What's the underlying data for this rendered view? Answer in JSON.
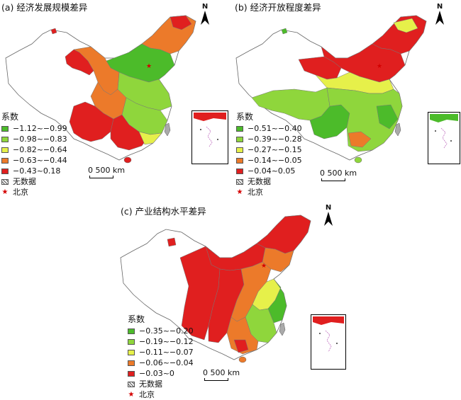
{
  "panels": [
    {
      "title": "(a) 经济发展规模差异",
      "legend_title": "系数",
      "classes": [
        {
          "label": "−1.12~−0.99",
          "color": "#4cbb2a"
        },
        {
          "label": "−0.98~−0.83",
          "color": "#8fd63c"
        },
        {
          "label": "−0.82~−0.64",
          "color": "#e6f04a"
        },
        {
          "label": "−0.63~−0.44",
          "color": "#ec7a2a"
        },
        {
          "label": "−0.43~0.18",
          "color": "#e01f1f"
        }
      ],
      "no_data_label": "无数据",
      "capital_label": "北京",
      "scale_label": "0 500 km",
      "north_label": "N"
    },
    {
      "title": "(b) 经济开放程度差异",
      "legend_title": "系数",
      "classes": [
        {
          "label": "−0.51~−0.40",
          "color": "#4cbb2a"
        },
        {
          "label": "−0.39~−0.28",
          "color": "#8fd63c"
        },
        {
          "label": "−0.27~−0.15",
          "color": "#e6f04a"
        },
        {
          "label": "−0.14~−0.05",
          "color": "#ec7a2a"
        },
        {
          "label": "−0.04~0.05",
          "color": "#e01f1f"
        }
      ],
      "no_data_label": "无数据",
      "capital_label": "北京",
      "scale_label": "0 500 km",
      "north_label": "N"
    },
    {
      "title": "(c) 产业结构水平差异",
      "legend_title": "系数",
      "classes": [
        {
          "label": "−0.35~−0.20",
          "color": "#4cbb2a"
        },
        {
          "label": "−0.19~−0.12",
          "color": "#8fd63c"
        },
        {
          "label": "−0.11~−0.07",
          "color": "#e6f04a"
        },
        {
          "label": "−0.06~−0.04",
          "color": "#ec7a2a"
        },
        {
          "label": "−0.03~0",
          "color": "#e01f1f"
        }
      ],
      "no_data_label": "无数据",
      "capital_label": "北京",
      "scale_label": "0 500 km",
      "north_label": "N"
    }
  ]
}
